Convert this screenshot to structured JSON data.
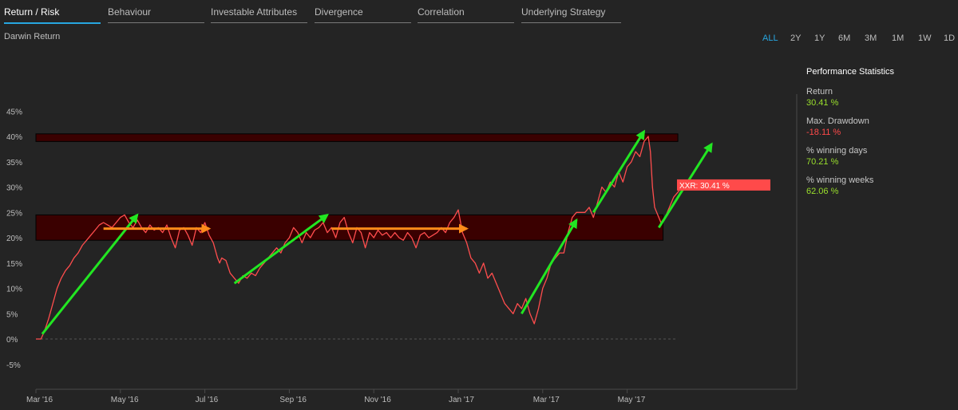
{
  "tabs": [
    {
      "label": "Return / Risk",
      "active": true
    },
    {
      "label": "Behaviour",
      "active": false
    },
    {
      "label": "Investable Attributes",
      "active": false
    },
    {
      "label": "Divergence",
      "active": false
    },
    {
      "label": "Correlation",
      "active": false
    },
    {
      "label": "Underlying Strategy",
      "active": false
    }
  ],
  "ranges": [
    {
      "label": "ALL",
      "active": true
    },
    {
      "label": "2Y",
      "active": false
    },
    {
      "label": "1Y",
      "active": false
    },
    {
      "label": "6M",
      "active": false
    },
    {
      "label": "3M",
      "active": false
    },
    {
      "label": "1M",
      "active": false
    },
    {
      "label": "1W",
      "active": false
    },
    {
      "label": "1D",
      "active": false
    }
  ],
  "stats": {
    "title": "Performance Statistics",
    "items": [
      {
        "label": "Return",
        "value": "30.41 %",
        "color": "#9adf2c"
      },
      {
        "label": "Max. Drawdown",
        "value": "-18.11 %",
        "color": "#ff4a4a"
      },
      {
        "label": "% winning days",
        "value": "70.21 %",
        "color": "#9adf2c"
      },
      {
        "label": "% winning weeks",
        "value": "62.06 %",
        "color": "#9adf2c"
      }
    ]
  },
  "chart_data": {
    "type": "line",
    "title": "Darwin Return",
    "yticks": [
      "45%",
      "40%",
      "35%",
      "30%",
      "25%",
      "20%",
      "15%",
      "10%",
      "5%",
      "0%",
      "-5%"
    ],
    "ytick_values": [
      45,
      40,
      35,
      30,
      25,
      20,
      15,
      10,
      5,
      0,
      -5
    ],
    "ylim": [
      -10,
      48
    ],
    "xlim": [
      0,
      15.6
    ],
    "xticks": [
      {
        "label": "Mar '16",
        "x": 0
      },
      {
        "label": "May '16",
        "x": 2
      },
      {
        "label": "Jul '16",
        "x": 4
      },
      {
        "label": "Sep '16",
        "x": 6
      },
      {
        "label": "Nov '16",
        "x": 8
      },
      {
        "label": "Jan '17",
        "x": 10
      },
      {
        "label": "Mar '17",
        "x": 12
      },
      {
        "label": "May '17",
        "x": 14
      }
    ],
    "series": [
      {
        "color": "#ff4d4d",
        "points": [
          [
            0,
            0
          ],
          [
            0.12,
            0
          ],
          [
            0.2,
            1.5
          ],
          [
            0.3,
            4
          ],
          [
            0.4,
            7
          ],
          [
            0.5,
            10
          ],
          [
            0.6,
            12
          ],
          [
            0.7,
            13.5
          ],
          [
            0.8,
            14.5
          ],
          [
            0.9,
            16
          ],
          [
            1.0,
            17
          ],
          [
            1.1,
            18.5
          ],
          [
            1.2,
            19.5
          ],
          [
            1.3,
            20.5
          ],
          [
            1.4,
            21.5
          ],
          [
            1.5,
            22.5
          ],
          [
            1.6,
            23
          ],
          [
            1.7,
            22.5
          ],
          [
            1.8,
            22
          ],
          [
            1.9,
            23
          ],
          [
            2.0,
            24
          ],
          [
            2.1,
            24.5
          ],
          [
            2.2,
            23
          ],
          [
            2.3,
            22
          ],
          [
            2.4,
            23.5
          ],
          [
            2.5,
            22
          ],
          [
            2.6,
            21
          ],
          [
            2.7,
            22.5
          ],
          [
            2.8,
            21.5
          ],
          [
            2.9,
            22
          ],
          [
            3.0,
            21
          ],
          [
            3.1,
            22.5
          ],
          [
            3.2,
            20
          ],
          [
            3.3,
            18
          ],
          [
            3.4,
            21.5
          ],
          [
            3.5,
            22
          ],
          [
            3.6,
            20.5
          ],
          [
            3.7,
            18.5
          ],
          [
            3.8,
            22
          ],
          [
            3.9,
            21
          ],
          [
            4.0,
            23
          ],
          [
            4.1,
            20.5
          ],
          [
            4.2,
            19
          ],
          [
            4.3,
            16
          ],
          [
            4.35,
            15
          ],
          [
            4.4,
            16
          ],
          [
            4.5,
            15.5
          ],
          [
            4.6,
            13
          ],
          [
            4.7,
            12
          ],
          [
            4.8,
            11
          ],
          [
            4.9,
            12.5
          ],
          [
            5.0,
            12
          ],
          [
            5.1,
            13
          ],
          [
            5.2,
            12.5
          ],
          [
            5.3,
            14
          ],
          [
            5.4,
            15
          ],
          [
            5.5,
            16
          ],
          [
            5.6,
            17
          ],
          [
            5.7,
            18
          ],
          [
            5.8,
            17
          ],
          [
            5.9,
            19
          ],
          [
            6.0,
            20
          ],
          [
            6.1,
            22
          ],
          [
            6.2,
            21
          ],
          [
            6.3,
            19
          ],
          [
            6.4,
            21
          ],
          [
            6.5,
            20
          ],
          [
            6.6,
            21.5
          ],
          [
            6.7,
            22
          ],
          [
            6.8,
            23
          ],
          [
            6.9,
            21
          ],
          [
            7.0,
            22
          ],
          [
            7.1,
            20
          ],
          [
            7.2,
            23
          ],
          [
            7.3,
            24
          ],
          [
            7.4,
            21
          ],
          [
            7.5,
            19
          ],
          [
            7.6,
            22
          ],
          [
            7.7,
            21
          ],
          [
            7.8,
            18
          ],
          [
            7.9,
            21
          ],
          [
            8.0,
            20
          ],
          [
            8.1,
            21.5
          ],
          [
            8.2,
            20.5
          ],
          [
            8.3,
            21
          ],
          [
            8.4,
            20
          ],
          [
            8.5,
            21
          ],
          [
            8.6,
            20
          ],
          [
            8.7,
            19.5
          ],
          [
            8.8,
            21
          ],
          [
            8.9,
            20
          ],
          [
            9.0,
            18
          ],
          [
            9.1,
            20.5
          ],
          [
            9.2,
            21
          ],
          [
            9.3,
            20
          ],
          [
            9.4,
            20.5
          ],
          [
            9.5,
            21
          ],
          [
            9.6,
            22
          ],
          [
            9.7,
            21
          ],
          [
            9.8,
            23
          ],
          [
            9.9,
            24
          ],
          [
            10.0,
            25.5
          ],
          [
            10.1,
            21
          ],
          [
            10.2,
            19
          ],
          [
            10.3,
            16
          ],
          [
            10.4,
            15
          ],
          [
            10.5,
            13
          ],
          [
            10.6,
            15
          ],
          [
            10.7,
            12
          ],
          [
            10.8,
            13
          ],
          [
            10.9,
            11
          ],
          [
            11.0,
            9
          ],
          [
            11.1,
            7
          ],
          [
            11.2,
            6
          ],
          [
            11.3,
            5
          ],
          [
            11.4,
            7
          ],
          [
            11.5,
            6
          ],
          [
            11.6,
            8
          ],
          [
            11.7,
            5
          ],
          [
            11.8,
            3
          ],
          [
            11.9,
            6
          ],
          [
            12.0,
            10
          ],
          [
            12.1,
            12
          ],
          [
            12.2,
            15
          ],
          [
            12.3,
            16
          ],
          [
            12.4,
            17
          ],
          [
            12.5,
            17
          ],
          [
            12.6,
            21
          ],
          [
            12.7,
            24
          ],
          [
            12.8,
            25
          ],
          [
            12.9,
            25
          ],
          [
            13.0,
            25
          ],
          [
            13.1,
            26
          ],
          [
            13.2,
            24
          ],
          [
            13.3,
            27
          ],
          [
            13.4,
            30
          ],
          [
            13.5,
            29
          ],
          [
            13.6,
            31
          ],
          [
            13.7,
            30
          ],
          [
            13.8,
            33
          ],
          [
            13.9,
            31
          ],
          [
            14.0,
            34
          ],
          [
            14.1,
            35
          ],
          [
            14.2,
            37
          ],
          [
            14.3,
            36
          ],
          [
            14.4,
            39
          ],
          [
            14.5,
            40
          ],
          [
            14.55,
            37
          ],
          [
            14.6,
            30
          ],
          [
            14.65,
            26
          ],
          [
            14.7,
            25
          ],
          [
            14.8,
            23
          ],
          [
            14.9,
            24
          ],
          [
            15.0,
            26
          ],
          [
            15.1,
            28
          ],
          [
            15.2,
            29
          ],
          [
            15.3,
            30
          ],
          [
            15.35,
            30.41
          ]
        ]
      }
    ],
    "zero_line": 0,
    "annotations": [
      {
        "type": "band",
        "y1": 19.5,
        "y2": 24.5,
        "x1": 0,
        "x2": 14.85,
        "color": "#3a0000"
      },
      {
        "type": "band",
        "y1": 39,
        "y2": 40.5,
        "x1": 0,
        "x2": 15.2,
        "color": "#3a0000"
      },
      {
        "type": "label",
        "text": "XXR: 30.41 %",
        "value": 30.41,
        "color": "#ff4a4a"
      },
      {
        "type": "arrow",
        "color": "#22e622",
        "from": [
          0.15,
          1
        ],
        "to": [
          2.4,
          24.5
        ]
      },
      {
        "type": "arrow",
        "color": "#ff8c1a",
        "from": [
          1.6,
          21.8
        ],
        "to": [
          4.1,
          21.8
        ]
      },
      {
        "type": "arrow",
        "color": "#22e622",
        "from": [
          4.7,
          11
        ],
        "to": [
          6.9,
          24.5
        ]
      },
      {
        "type": "arrow",
        "color": "#ff8c1a",
        "from": [
          7.0,
          21.8
        ],
        "to": [
          10.2,
          21.8
        ]
      },
      {
        "type": "arrow",
        "color": "#22e622",
        "from": [
          11.5,
          5
        ],
        "to": [
          12.8,
          23.5
        ]
      },
      {
        "type": "arrow",
        "color": "#22e622",
        "from": [
          13.2,
          25
        ],
        "to": [
          14.4,
          41
        ]
      },
      {
        "type": "arrow",
        "color": "#22e622",
        "from": [
          14.75,
          22
        ],
        "to": [
          16.0,
          38.5
        ]
      }
    ]
  }
}
